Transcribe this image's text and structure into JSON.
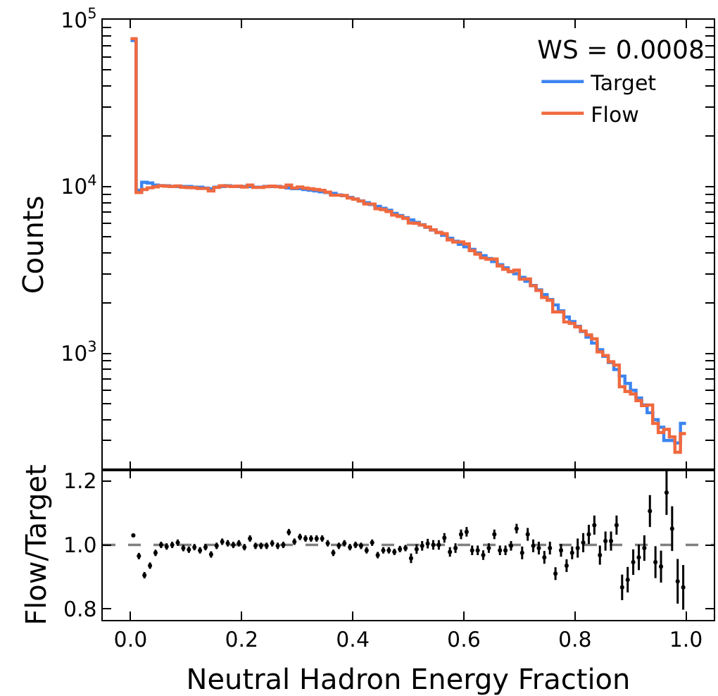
{
  "chart_data": [
    {
      "type": "histogram",
      "ylabel": "Counts",
      "legend_title": "WS = 0.0008",
      "legend": "top right",
      "log": "y",
      "tick_labels": "y",
      "bins": [
        0,
        0.01,
        0.02,
        0.03,
        0.04,
        0.05,
        0.06,
        0.07,
        0.08,
        0.09,
        0.1,
        0.11,
        0.12,
        0.13,
        0.14,
        0.15,
        0.16,
        0.17,
        0.18,
        0.19,
        0.2,
        0.21,
        0.22,
        0.23,
        0.24,
        0.25,
        0.26,
        0.27,
        0.28,
        0.29,
        0.3,
        0.31,
        0.32,
        0.33,
        0.34,
        0.35,
        0.36,
        0.37,
        0.38,
        0.39,
        0.4,
        0.41,
        0.42,
        0.43,
        0.44,
        0.45,
        0.46,
        0.47,
        0.48,
        0.49,
        0.5,
        0.51,
        0.52,
        0.53,
        0.54,
        0.55,
        0.56,
        0.57,
        0.58,
        0.59,
        0.6,
        0.61,
        0.62,
        0.63,
        0.64,
        0.65,
        0.66,
        0.67,
        0.68,
        0.69,
        0.7,
        0.71,
        0.72,
        0.73,
        0.74,
        0.75,
        0.76,
        0.77,
        0.78,
        0.79,
        0.8,
        0.81,
        0.82,
        0.83,
        0.84,
        0.85,
        0.86,
        0.87,
        0.88,
        0.89,
        0.9,
        0.91,
        0.92,
        0.93,
        0.94,
        0.95,
        0.96,
        0.97,
        0.98,
        0.99,
        1.0
      ],
      "series": [
        {
          "name": "Target",
          "color": "#3d85f0",
          "values": [
            75000,
            9500,
            10600,
            10500,
            10200,
            10100,
            10100,
            10000,
            10000,
            10000,
            10000,
            9900,
            9900,
            9800,
            9700,
            9900,
            10000,
            10100,
            10000,
            10000,
            10000,
            10000,
            9900,
            9900,
            10000,
            10000,
            10000,
            9900,
            9800,
            9700,
            9700,
            9600,
            9500,
            9400,
            9300,
            9200,
            9100,
            8900,
            8800,
            8600,
            8400,
            8200,
            8000,
            7800,
            7600,
            7400,
            7200,
            6900,
            6700,
            6500,
            6300,
            6100,
            5900,
            5700,
            5500,
            5300,
            5100,
            4900,
            4700,
            4500,
            4350,
            4200,
            4000,
            3850,
            3700,
            3550,
            3400,
            3250,
            3100,
            3000,
            2850,
            2700,
            2550,
            2400,
            2250,
            2100,
            1950,
            1800,
            1650,
            1550,
            1450,
            1350,
            1250,
            1150,
            1050,
            960,
            880,
            800,
            730,
            660,
            600,
            540,
            490,
            440,
            400,
            360,
            300,
            300,
            290,
            380
          ]
        },
        {
          "name": "Flow",
          "color": "#f0693f",
          "values": [
            77000,
            9200,
            9600,
            9820,
            9950,
            10100,
            10050,
            10000,
            10070,
            9900,
            9850,
            9830,
            9730,
            9730,
            9410,
            9870,
            10100,
            10050,
            10000,
            10050,
            9930,
            10200,
            9870,
            9870,
            9970,
            10050,
            9970,
            9900,
            10190,
            9800,
            9940,
            9790,
            9690,
            9590,
            9490,
            9250,
            8870,
            8870,
            8840,
            8540,
            8400,
            8180,
            7860,
            7850,
            7360,
            7270,
            7080,
            6750,
            6610,
            6440,
            6040,
            6020,
            5880,
            5720,
            5500,
            5300,
            5210,
            4790,
            4650,
            4650,
            4530,
            4130,
            3930,
            3730,
            3660,
            3670,
            3340,
            3190,
            3090,
            3150,
            2780,
            2790,
            2540,
            2380,
            2160,
            2080,
            1770,
            1770,
            1540,
            1510,
            1440,
            1360,
            1290,
            1220,
            1020,
            970,
            890,
            850,
            630,
            590,
            570,
            520,
            485,
            490,
            380,
            335,
            350,
            315,
            255,
            330
          ]
        }
      ],
      "xlim": [
        -0.05,
        1.05
      ],
      "xticks": [
        {
          "value": 0,
          "label": null
        },
        {
          "value": 0.2,
          "label": null
        },
        {
          "value": 0.4,
          "label": null
        },
        {
          "value": 0.6,
          "label": null
        },
        {
          "value": 0.8,
          "label": null
        },
        {
          "value": 1.0,
          "label": null
        }
      ],
      "ylim": [
        200,
        100000
      ],
      "yticks": [
        {
          "value": 200,
          "label": null
        },
        {
          "value": 300,
          "label": null
        },
        {
          "value": 400,
          "label": null
        },
        {
          "value": 500,
          "label": null
        },
        {
          "value": 600,
          "label": null
        },
        {
          "value": 700,
          "label": null
        },
        {
          "value": 800,
          "label": null
        },
        {
          "value": 900,
          "label": null
        },
        {
          "value": 1000,
          "label": "10$^{3}$"
        },
        {
          "value": 2000,
          "label": null
        },
        {
          "value": 3000,
          "label": null
        },
        {
          "value": 4000,
          "label": null
        },
        {
          "value": 5000,
          "label": null
        },
        {
          "value": 6000,
          "label": null
        },
        {
          "value": 7000,
          "label": null
        },
        {
          "value": 8000,
          "label": null
        },
        {
          "value": 9000,
          "label": null
        },
        {
          "value": 10000,
          "label": "10$^{4}$"
        },
        {
          "value": 20000,
          "label": null
        },
        {
          "value": 30000,
          "label": null
        },
        {
          "value": 40000,
          "label": null
        },
        {
          "value": 50000,
          "label": null
        },
        {
          "value": 60000,
          "label": null
        },
        {
          "value": 70000,
          "label": null
        },
        {
          "value": 80000,
          "label": null
        },
        {
          "value": 90000,
          "label": null
        },
        {
          "value": 100000,
          "label": "10$^{5}$"
        }
      ]
    },
    {
      "type": "scatter",
      "xlabel": "Neutral Hadron Energy Fraction",
      "ylabel": "Flow/Target",
      "marker": "circle",
      "color": "#000000",
      "x": [
        0.005,
        0.015,
        0.025,
        0.035,
        0.045,
        0.055,
        0.065,
        0.075,
        0.085,
        0.095,
        0.105,
        0.115,
        0.125,
        0.135,
        0.145,
        0.155,
        0.165,
        0.175,
        0.185,
        0.195,
        0.205,
        0.215,
        0.225,
        0.235,
        0.245,
        0.255,
        0.265,
        0.275,
        0.285,
        0.295,
        0.305,
        0.315,
        0.325,
        0.335,
        0.345,
        0.355,
        0.365,
        0.375,
        0.385,
        0.395,
        0.405,
        0.415,
        0.425,
        0.435,
        0.445,
        0.455,
        0.465,
        0.475,
        0.485,
        0.495,
        0.505,
        0.515,
        0.525,
        0.535,
        0.545,
        0.555,
        0.565,
        0.575,
        0.585,
        0.595,
        0.605,
        0.615,
        0.625,
        0.635,
        0.645,
        0.655,
        0.665,
        0.675,
        0.685,
        0.695,
        0.705,
        0.715,
        0.725,
        0.735,
        0.745,
        0.755,
        0.765,
        0.775,
        0.785,
        0.795,
        0.805,
        0.815,
        0.825,
        0.835,
        0.845,
        0.855,
        0.865,
        0.875,
        0.885,
        0.895,
        0.905,
        0.915,
        0.925,
        0.935,
        0.945,
        0.955,
        0.965,
        0.975,
        0.985,
        0.995
      ],
      "values": [
        1.03,
        0.965,
        0.905,
        0.935,
        0.975,
        1.0,
        0.995,
        1.0,
        1.007,
        0.99,
        0.985,
        0.993,
        0.983,
        0.993,
        0.97,
        0.997,
        1.01,
        1.005,
        1.0,
        1.005,
        0.993,
        1.02,
        0.997,
        0.997,
        0.997,
        1.005,
        0.997,
        1.0,
        1.04,
        1.01,
        1.025,
        1.02,
        1.02,
        1.02,
        1.02,
        1.005,
        0.975,
        0.997,
        1.005,
        0.993,
        1.0,
        0.997,
        0.983,
        1.007,
        0.968,
        0.983,
        0.983,
        0.978,
        0.987,
        0.99,
        0.958,
        0.987,
        0.997,
        1.004,
        1.0,
        1.0,
        1.022,
        0.978,
        0.99,
        1.033,
        1.041,
        0.983,
        0.983,
        0.968,
        0.99,
        1.033,
        0.983,
        0.983,
        0.997,
        1.051,
        0.975,
        1.033,
        0.997,
        0.99,
        0.961,
        0.99,
        0.91,
        0.983,
        0.935,
        0.975,
        0.99,
        1.007,
        1.033,
        1.062,
        0.968,
        1.012,
        1.012,
        1.062,
        0.867,
        0.891,
        0.946,
        0.961,
        0.99,
        1.106,
        0.946,
        0.932,
        1.164,
        1.051,
        0.886,
        0.867
      ],
      "errors": [
        0.005,
        0.01,
        0.01,
        0.01,
        0.01,
        0.01,
        0.01,
        0.01,
        0.01,
        0.01,
        0.01,
        0.01,
        0.01,
        0.01,
        0.01,
        0.01,
        0.01,
        0.01,
        0.01,
        0.01,
        0.01,
        0.01,
        0.01,
        0.01,
        0.01,
        0.01,
        0.01,
        0.01,
        0.01,
        0.01,
        0.01,
        0.01,
        0.01,
        0.01,
        0.01,
        0.01,
        0.01,
        0.01,
        0.01,
        0.01,
        0.01,
        0.01,
        0.01,
        0.01,
        0.01,
        0.01,
        0.01,
        0.01,
        0.01,
        0.01,
        0.015,
        0.015,
        0.015,
        0.015,
        0.015,
        0.015,
        0.015,
        0.015,
        0.015,
        0.015,
        0.015,
        0.015,
        0.015,
        0.015,
        0.015,
        0.015,
        0.015,
        0.015,
        0.015,
        0.015,
        0.02,
        0.02,
        0.02,
        0.02,
        0.02,
        0.02,
        0.02,
        0.02,
        0.02,
        0.02,
        0.03,
        0.03,
        0.03,
        0.03,
        0.03,
        0.03,
        0.03,
        0.03,
        0.04,
        0.04,
        0.04,
        0.04,
        0.04,
        0.05,
        0.05,
        0.05,
        0.07,
        0.07,
        0.07,
        0.07
      ],
      "ref_lines": [
        {
          "axis": "y",
          "value": 1.0,
          "color": "#808080",
          "line_style": "dashed"
        }
      ],
      "xlim": [
        -0.05,
        1.05
      ],
      "xticks": [
        {
          "value": 0,
          "label": "0.0"
        },
        {
          "value": 0.2,
          "label": "0.2"
        },
        {
          "value": 0.4,
          "label": "0.4"
        },
        {
          "value": 0.6,
          "label": "0.6"
        },
        {
          "value": 0.8,
          "label": "0.8"
        },
        {
          "value": 1.0,
          "label": "1.0"
        }
      ],
      "ylim": [
        0.765,
        1.235
      ],
      "yticks": [
        {
          "value": 0.8,
          "label": "0.8"
        },
        {
          "value": 1.0,
          "label": "1.0"
        },
        {
          "value": 1.2,
          "label": "1.2"
        }
      ]
    }
  ]
}
